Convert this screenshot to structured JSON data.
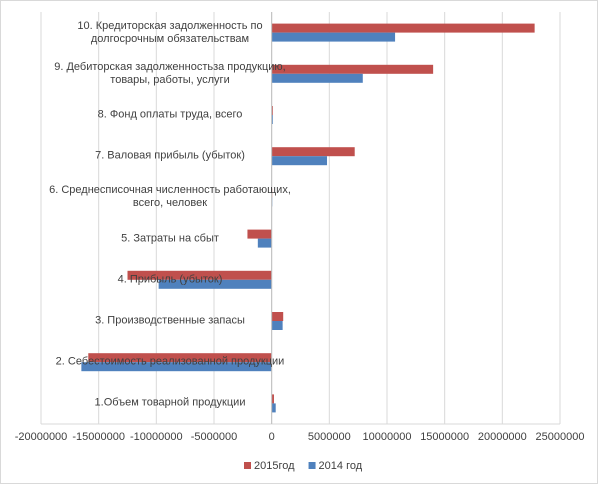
{
  "chart_data": {
    "type": "bar",
    "orientation": "horizontal",
    "categories": [
      "1.Объем товарной продукции",
      "2. Себестоимость реализованной продукции",
      "3. Производственные запасы",
      "4. Прибыль (убыток)",
      "5. Затраты на сбыт",
      "6. Среднесписочная численность работающих, всего, человек",
      "7. Валовая прибыль (убыток)",
      "8. Фонд оплаты труда, всего",
      "9. Дебиторская задолженностьза продукцию, товары, работы, услуги",
      "10. Кредиторская задолженность по долгосрочным обязательствам"
    ],
    "series": [
      {
        "name": "2015год",
        "color": "#c0504d",
        "values": [
          200000,
          -15900000,
          1000000,
          -12500000,
          -2100000,
          50000,
          7200000,
          100000,
          14000000,
          22800000
        ]
      },
      {
        "name": "2014 год",
        "color": "#4f81bd",
        "values": [
          350000,
          -16500000,
          950000,
          -9800000,
          -1200000,
          50000,
          4800000,
          100000,
          7900000,
          10700000
        ]
      }
    ],
    "xlim": [
      -20000000,
      25000000
    ],
    "xticks": [
      -20000000,
      -15000000,
      -10000000,
      -5000000,
      0,
      5000000,
      10000000,
      15000000,
      20000000,
      25000000
    ],
    "grid": true,
    "legend": "bottom"
  }
}
